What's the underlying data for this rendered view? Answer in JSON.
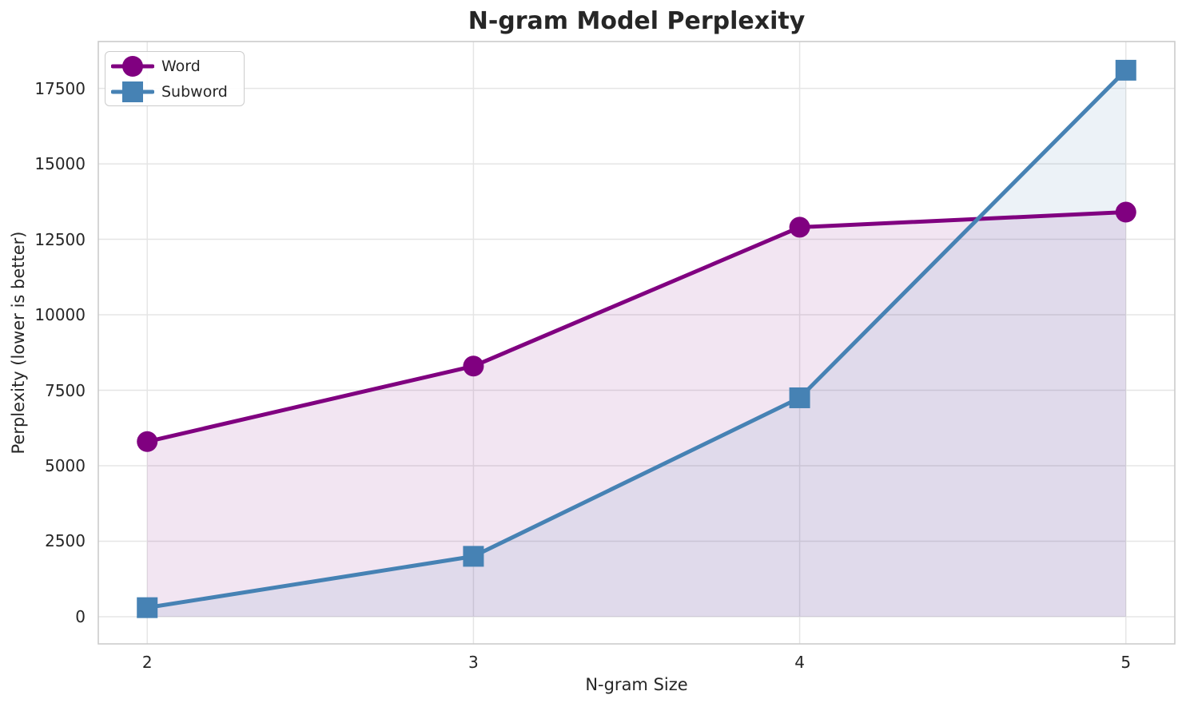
{
  "chart_data": {
    "type": "line",
    "title": "N-gram Model Perplexity",
    "xlabel": "N-gram Size",
    "ylabel": "Perplexity (lower is better)",
    "x": [
      2,
      3,
      4,
      5
    ],
    "xtick_labels": [
      "2",
      "3",
      "4",
      "5"
    ],
    "yticks": [
      0,
      2500,
      5000,
      7500,
      10000,
      12500,
      15000,
      17500
    ],
    "ytick_labels": [
      "0",
      "2500",
      "5000",
      "7500",
      "10000",
      "12500",
      "15000",
      "17500"
    ],
    "series": [
      {
        "name": "Word",
        "marker": "circle",
        "color": "#800080",
        "fill_alpha": 0.1,
        "values": [
          5800,
          8300,
          12900,
          13400
        ]
      },
      {
        "name": "Subword",
        "marker": "square",
        "color": "#4682B4",
        "fill_alpha": 0.1,
        "values": [
          300,
          2000,
          7250,
          18100
        ]
      }
    ],
    "fill_to_zero": true,
    "grid": true,
    "legend_position": "upper left",
    "xlim": [
      1.85,
      5.15
    ],
    "ylim": [
      -900,
      19050
    ],
    "grid_color": "#e5e5e5",
    "spine_color": "#cbcbcb",
    "text_color": "#262626"
  }
}
